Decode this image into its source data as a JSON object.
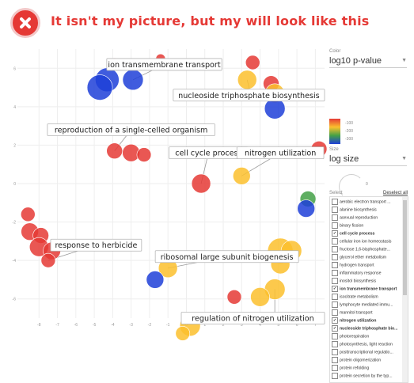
{
  "banner": {
    "text": "It isn't  my picture, but my will look like this",
    "icon": "close-circle-icon",
    "color": "#e53935"
  },
  "controls": {
    "color_label": "Color",
    "color_value": "log10 p-value",
    "color_ticks": [
      "-100",
      "-200",
      "-300"
    ],
    "size_label": "Size",
    "size_value": "log size",
    "size_ticks": [
      "0"
    ],
    "select_label": "Select",
    "deselect_all": "Deselect all",
    "terms": [
      {
        "label": "aerobic electron transport ...",
        "checked": false
      },
      {
        "label": "alanine biosynthesis",
        "checked": false
      },
      {
        "label": "asexual reproduction",
        "checked": false
      },
      {
        "label": "binary fission",
        "checked": false
      },
      {
        "label": "cell cycle process",
        "checked": true
      },
      {
        "label": "cellular iron ion homeostasis",
        "checked": false
      },
      {
        "label": "fructose 1,6-bisphosphate...",
        "checked": false
      },
      {
        "label": "glycerol ether metabolism",
        "checked": false
      },
      {
        "label": "hydrogen transport",
        "checked": false
      },
      {
        "label": "inflammatory response",
        "checked": false
      },
      {
        "label": "inositol biosynthesis",
        "checked": false
      },
      {
        "label": "ion transmembrane transport",
        "checked": true
      },
      {
        "label": "isocitrate metabolism",
        "checked": false
      },
      {
        "label": "lymphocyte mediated immu...",
        "checked": false
      },
      {
        "label": "mannitol transport",
        "checked": false
      },
      {
        "label": "nitrogen utilization",
        "checked": true
      },
      {
        "label": "nucleoside triphosphate bio...",
        "checked": true
      },
      {
        "label": "photorespiration",
        "checked": false
      },
      {
        "label": "photosynthesis, light reaction",
        "checked": false
      },
      {
        "label": "posttranscriptional regulatio...",
        "checked": false
      },
      {
        "label": "protein oligomerization",
        "checked": false
      },
      {
        "label": "protein refolding",
        "checked": false
      },
      {
        "label": "protein secretion by the typ...",
        "checked": false
      }
    ]
  },
  "chart_data": {
    "type": "scatter",
    "xlim": [
      -9,
      7.5
    ],
    "ylim": [
      -7,
      7
    ],
    "xticks": [
      -8,
      -7,
      -6,
      -5,
      -4,
      -3,
      -2,
      -1,
      0,
      1,
      2,
      3,
      4,
      5,
      6,
      7
    ],
    "yticks": [
      6,
      4,
      2,
      0,
      -2,
      -4,
      -6
    ],
    "grid": true,
    "color_scale": [
      "#e53935",
      "#fbc02d",
      "#43a047",
      "#1e3fd8"
    ],
    "points": [
      {
        "x": -1.4,
        "y": 6.5,
        "r": 6,
        "color": "#e53935"
      },
      {
        "x": -3.9,
        "y": 6.2,
        "r": 8,
        "color": "#e53935"
      },
      {
        "x": -4.3,
        "y": 5.4,
        "r": 15,
        "color": "#1e3fd8"
      },
      {
        "x": -4.7,
        "y": 5.0,
        "r": 16,
        "color": "#1e3fd8"
      },
      {
        "x": -2.9,
        "y": 5.4,
        "r": 13,
        "color": "#1e3fd8"
      },
      {
        "x": 3.6,
        "y": 6.3,
        "r": 9,
        "color": "#e53935"
      },
      {
        "x": 3.3,
        "y": 5.4,
        "r": 12,
        "color": "#fbc02d"
      },
      {
        "x": 4.6,
        "y": 5.2,
        "r": 10,
        "color": "#e53935"
      },
      {
        "x": 4.8,
        "y": 4.7,
        "r": 12,
        "color": "#fbc02d"
      },
      {
        "x": 4.8,
        "y": 3.9,
        "r": 13,
        "color": "#1e3fd8"
      },
      {
        "x": -3.9,
        "y": 1.7,
        "r": 10,
        "color": "#e53935"
      },
      {
        "x": -3.0,
        "y": 1.6,
        "r": 11,
        "color": "#e53935"
      },
      {
        "x": -2.3,
        "y": 1.5,
        "r": 9,
        "color": "#e53935"
      },
      {
        "x": 0.8,
        "y": 0.0,
        "r": 12,
        "color": "#e53935"
      },
      {
        "x": 3.0,
        "y": 0.4,
        "r": 11,
        "color": "#fbc02d"
      },
      {
        "x": 7.2,
        "y": 1.8,
        "r": 10,
        "color": "#e53935"
      },
      {
        "x": 6.6,
        "y": -0.8,
        "r": 10,
        "color": "#43a047"
      },
      {
        "x": 6.5,
        "y": -1.3,
        "r": 11,
        "color": "#1e3fd8"
      },
      {
        "x": -8.6,
        "y": -1.6,
        "r": 9,
        "color": "#e53935"
      },
      {
        "x": -8.5,
        "y": -2.5,
        "r": 11,
        "color": "#e53935"
      },
      {
        "x": -7.9,
        "y": -2.7,
        "r": 10,
        "color": "#e53935"
      },
      {
        "x": -8.0,
        "y": -3.3,
        "r": 12,
        "color": "#e53935"
      },
      {
        "x": -7.3,
        "y": -3.5,
        "r": 11,
        "color": "#e53935"
      },
      {
        "x": -7.5,
        "y": -4.0,
        "r": 9,
        "color": "#e53935"
      },
      {
        "x": -1.0,
        "y": -4.4,
        "r": 12,
        "color": "#fbc02d"
      },
      {
        "x": -1.7,
        "y": -5.0,
        "r": 11,
        "color": "#1e3fd8"
      },
      {
        "x": 5.1,
        "y": -3.5,
        "r": 16,
        "color": "#fbc02d"
      },
      {
        "x": 5.7,
        "y": -3.5,
        "r": 13,
        "color": "#fbc02d"
      },
      {
        "x": 5.1,
        "y": -4.2,
        "r": 12,
        "color": "#fbc02d"
      },
      {
        "x": 2.6,
        "y": -5.9,
        "r": 9,
        "color": "#e53935"
      },
      {
        "x": 4.8,
        "y": -5.5,
        "r": 13,
        "color": "#fbc02d"
      },
      {
        "x": 4.0,
        "y": -5.9,
        "r": 12,
        "color": "#fbc02d"
      },
      {
        "x": 0.2,
        "y": -7.4,
        "r": 13,
        "color": "#fbc02d"
      },
      {
        "x": -0.2,
        "y": -7.8,
        "r": 9,
        "color": "#fbc02d"
      }
    ],
    "annotations": [
      {
        "text": "ion transmembrane transport",
        "x": -1.2,
        "y": 6.2,
        "px": -2.9,
        "py": 5.4
      },
      {
        "text": "nucleoside triphosphate biosynthesis",
        "x": 3.5,
        "y": 4.6,
        "px": 3.3,
        "py": 5.4
      },
      {
        "text": "reproduction of a single-celled organism",
        "x": -3.0,
        "y": 2.8,
        "px": -3.9,
        "py": 1.7
      },
      {
        "text": "cell cycle process",
        "x": 1.2,
        "y": 1.6,
        "px": 0.8,
        "py": 0.0
      },
      {
        "text": "nitrogen utilization",
        "x": 5.1,
        "y": 1.6,
        "px": 3.0,
        "py": 0.4
      },
      {
        "text": "response to herbicide",
        "x": -4.9,
        "y": -3.2,
        "px": -7.5,
        "py": -4.0
      },
      {
        "text": "ribosomal large subunit biogenesis",
        "x": 2.2,
        "y": -3.8,
        "px": -1.0,
        "py": -4.4
      },
      {
        "text": "regulation of nitrogen utilization",
        "x": 4.8,
        "y": -7.0,
        "px": 4.8,
        "py": -5.5
      }
    ]
  }
}
